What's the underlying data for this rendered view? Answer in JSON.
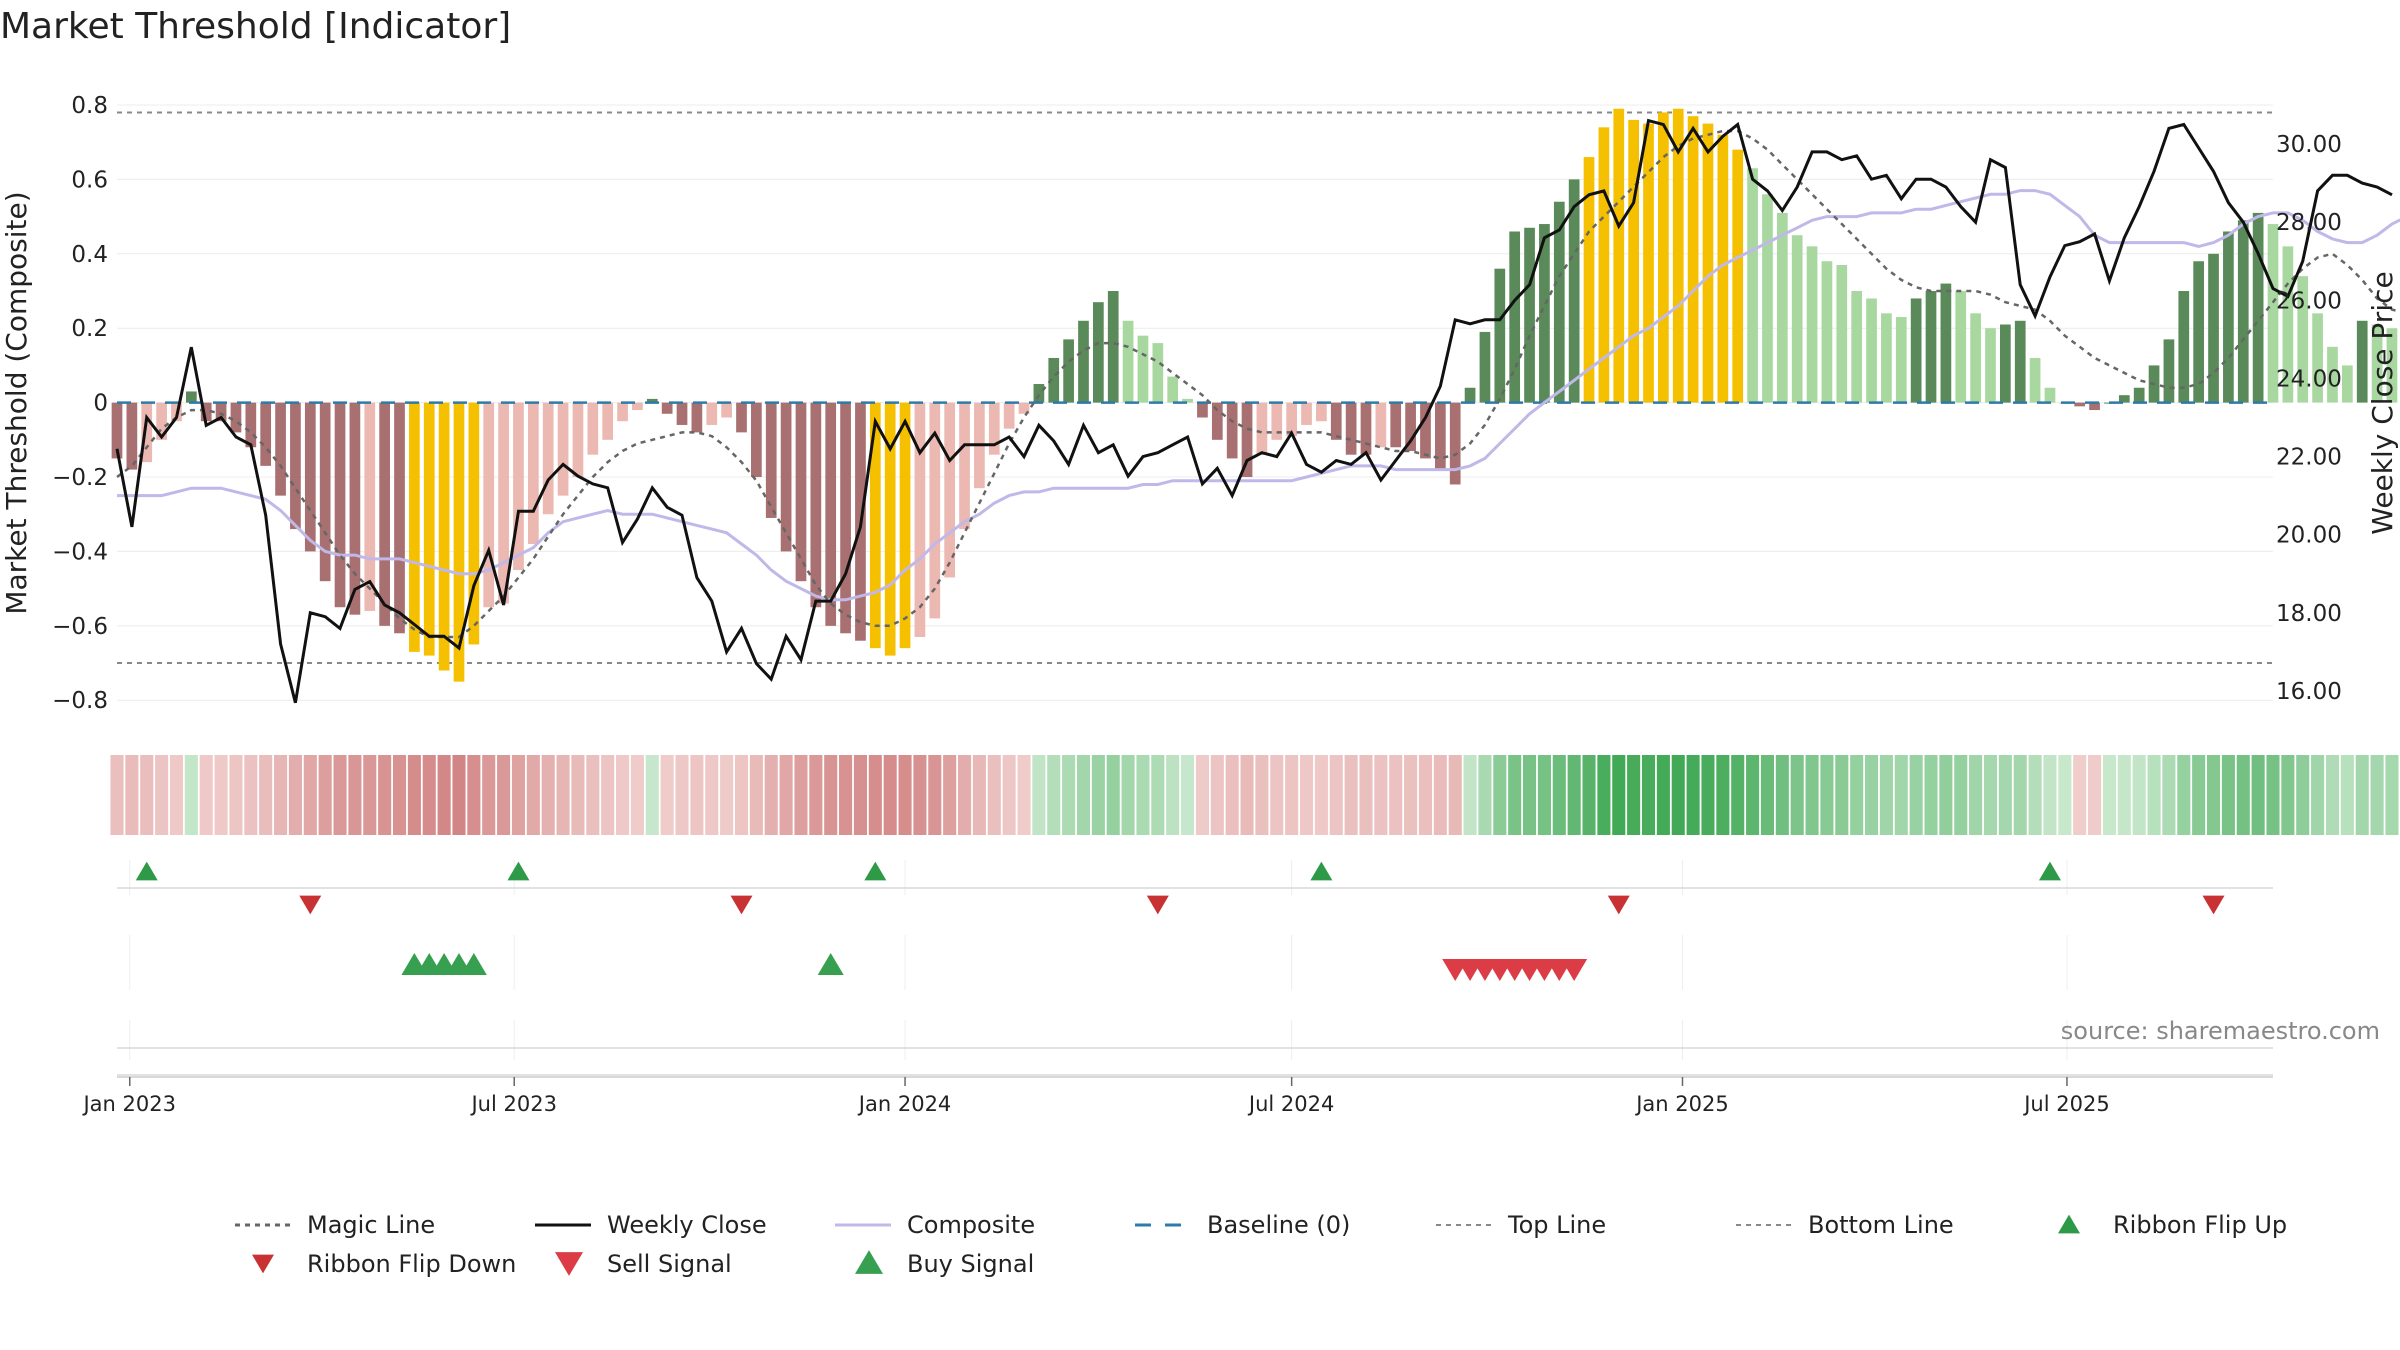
{
  "chart_data": {
    "type": "bar",
    "title": "Market Threshold [Indicator]",
    "ylabel_left": "Market Threshold (Composite)",
    "ylabel_right": "Weekly Close Price",
    "source": "source: sharemaestro.com",
    "x_start": "2022-12-26",
    "x_end": "2025-10-06",
    "ylim_left": [
      -0.88,
      0.8
    ],
    "ylim_right": [
      15.0,
      31.0
    ],
    "yticks_left": [
      0.8,
      0.6,
      0.4,
      0.2,
      0,
      -0.2,
      -0.4,
      -0.6,
      -0.8
    ],
    "yticks_left_labels": [
      "0.8",
      "0.6",
      "0.4",
      "0.2",
      "0",
      "−0.2",
      "−0.4",
      "−0.6",
      "−0.8"
    ],
    "yticks_right": [
      30,
      28,
      26,
      24,
      22,
      20,
      18,
      16
    ],
    "yticks_right_labels": [
      "30.00",
      "28.00",
      "26.00",
      "24.00",
      "22.00",
      "20.00",
      "18.00",
      "16.00"
    ],
    "xticks": [
      {
        "date": "2023-01-01",
        "label": "Jan 2023"
      },
      {
        "date": "2023-07-01",
        "label": "Jul 2023"
      },
      {
        "date": "2024-01-01",
        "label": "Jan 2024"
      },
      {
        "date": "2024-07-01",
        "label": "Jul 2024"
      },
      {
        "date": "2025-01-01",
        "label": "Jan 2025"
      },
      {
        "date": "2025-07-01",
        "label": "Jul 2025"
      }
    ],
    "top_line": 0.78,
    "bottom_line": -0.7,
    "baseline": 0,
    "composite_bars": [
      -0.15,
      -0.18,
      -0.16,
      -0.1,
      -0.05,
      0.03,
      -0.05,
      -0.05,
      -0.08,
      -0.12,
      -0.17,
      -0.25,
      -0.34,
      -0.4,
      -0.48,
      -0.55,
      -0.57,
      -0.56,
      -0.6,
      -0.62,
      -0.67,
      -0.68,
      -0.72,
      -0.75,
      -0.65,
      -0.55,
      -0.54,
      -0.45,
      -0.38,
      -0.3,
      -0.25,
      -0.2,
      -0.14,
      -0.1,
      -0.05,
      -0.02,
      0.01,
      -0.03,
      -0.06,
      -0.08,
      -0.06,
      -0.04,
      -0.08,
      -0.2,
      -0.31,
      -0.4,
      -0.48,
      -0.55,
      -0.6,
      -0.62,
      -0.64,
      -0.66,
      -0.68,
      -0.66,
      -0.63,
      -0.58,
      -0.47,
      -0.34,
      -0.23,
      -0.14,
      -0.07,
      -0.03,
      0.05,
      0.12,
      0.17,
      0.22,
      0.27,
      0.3,
      0.22,
      0.18,
      0.16,
      0.07,
      0.01,
      -0.04,
      -0.1,
      -0.15,
      -0.2,
      -0.14,
      -0.1,
      -0.09,
      -0.06,
      -0.05,
      -0.1,
      -0.14,
      -0.14,
      -0.12,
      -0.12,
      -0.13,
      -0.15,
      -0.18,
      -0.22,
      0.04,
      0.19,
      0.36,
      0.46,
      0.47,
      0.48,
      0.54,
      0.6,
      0.66,
      0.74,
      0.79,
      0.76,
      0.75,
      0.78,
      0.79,
      0.77,
      0.75,
      0.72,
      0.68,
      0.63,
      0.56,
      0.51,
      0.45,
      0.42,
      0.38,
      0.37,
      0.3,
      0.28,
      0.24,
      0.23,
      0.28,
      0.3,
      0.32,
      0.3,
      0.24,
      0.2,
      0.21,
      0.22,
      0.12,
      0.04,
      0.0,
      -0.01,
      -0.02,
      0.0,
      0.02,
      0.04,
      0.1,
      0.17,
      0.3,
      0.38,
      0.4,
      0.46,
      0.49,
      0.51,
      0.48,
      0.42,
      0.34,
      0.24,
      0.15,
      0.1,
      0.22,
      0.21,
      0.2,
      0.18,
      0.17
    ],
    "weekly_close": [
      22.2,
      20.2,
      23.0,
      22.5,
      23.0,
      24.8,
      22.8,
      23.0,
      22.5,
      22.3,
      20.5,
      17.2,
      15.7,
      18.0,
      17.9,
      17.6,
      18.6,
      18.8,
      18.2,
      18.0,
      17.7,
      17.4,
      17.4,
      17.1,
      18.7,
      19.6,
      18.2,
      20.6,
      20.6,
      21.4,
      21.8,
      21.5,
      21.3,
      21.2,
      19.8,
      20.4,
      21.2,
      20.7,
      20.5,
      18.9,
      18.3,
      17.0,
      17.6,
      16.7,
      16.3,
      17.4,
      16.8,
      18.3,
      18.3,
      19.0,
      20.2,
      22.9,
      22.2,
      22.9,
      22.1,
      22.6,
      21.9,
      22.3,
      22.3,
      22.3,
      22.5,
      22.0,
      22.8,
      22.4,
      21.8,
      22.8,
      22.1,
      22.3,
      21.5,
      22.0,
      22.1,
      22.3,
      22.5,
      21.3,
      21.7,
      21.0,
      21.9,
      22.1,
      22.0,
      22.6,
      21.8,
      21.6,
      21.9,
      21.8,
      22.1,
      21.4,
      21.9,
      22.4,
      23.0,
      23.8,
      25.5,
      25.4,
      25.5,
      25.5,
      26.0,
      26.4,
      27.6,
      27.8,
      28.4,
      28.7,
      28.8,
      27.9,
      28.5,
      30.6,
      30.5,
      29.8,
      30.4,
      29.8,
      30.2,
      30.5,
      29.1,
      28.8,
      28.3,
      28.9,
      29.8,
      29.8,
      29.6,
      29.7,
      29.1,
      29.2,
      28.6,
      29.1,
      29.1,
      28.9,
      28.4,
      28.0,
      29.6,
      29.4,
      26.4,
      25.6,
      26.6,
      27.4,
      27.5,
      27.7,
      26.5,
      27.6,
      28.4,
      29.3,
      30.4,
      30.5,
      29.9,
      29.3,
      28.5,
      28.0,
      27.2,
      26.3,
      26.1,
      27.0,
      28.8,
      29.2,
      29.2,
      29.0,
      28.9,
      28.7
    ],
    "composite_line": [
      -0.25,
      -0.25,
      -0.25,
      -0.25,
      -0.24,
      -0.23,
      -0.23,
      -0.23,
      -0.24,
      -0.25,
      -0.26,
      -0.29,
      -0.33,
      -0.37,
      -0.4,
      -0.41,
      -0.41,
      -0.42,
      -0.42,
      -0.42,
      -0.43,
      -0.44,
      -0.45,
      -0.46,
      -0.46,
      -0.45,
      -0.43,
      -0.41,
      -0.39,
      -0.35,
      -0.32,
      -0.31,
      -0.3,
      -0.29,
      -0.3,
      -0.3,
      -0.3,
      -0.31,
      -0.32,
      -0.33,
      -0.34,
      -0.35,
      -0.38,
      -0.41,
      -0.45,
      -0.48,
      -0.5,
      -0.52,
      -0.53,
      -0.53,
      -0.52,
      -0.51,
      -0.49,
      -0.45,
      -0.42,
      -0.38,
      -0.35,
      -0.32,
      -0.3,
      -0.27,
      -0.25,
      -0.24,
      -0.24,
      -0.23,
      -0.23,
      -0.23,
      -0.23,
      -0.23,
      -0.23,
      -0.22,
      -0.22,
      -0.21,
      -0.21,
      -0.21,
      -0.21,
      -0.21,
      -0.21,
      -0.21,
      -0.21,
      -0.21,
      -0.2,
      -0.19,
      -0.18,
      -0.17,
      -0.17,
      -0.17,
      -0.18,
      -0.18,
      -0.18,
      -0.18,
      -0.18,
      -0.17,
      -0.15,
      -0.11,
      -0.07,
      -0.03,
      0.0,
      0.03,
      0.06,
      0.09,
      0.12,
      0.15,
      0.18,
      0.2,
      0.23,
      0.26,
      0.3,
      0.34,
      0.37,
      0.39,
      0.41,
      0.43,
      0.45,
      0.47,
      0.49,
      0.5,
      0.5,
      0.5,
      0.51,
      0.51,
      0.51,
      0.52,
      0.52,
      0.53,
      0.54,
      0.55,
      0.56,
      0.56,
      0.57,
      0.57,
      0.56,
      0.53,
      0.5,
      0.45,
      0.43,
      0.43,
      0.43,
      0.43,
      0.43,
      0.43,
      0.42,
      0.43,
      0.45,
      0.48,
      0.5,
      0.51,
      0.51,
      0.49,
      0.46,
      0.44,
      0.43,
      0.43,
      0.45,
      0.48,
      0.5,
      0.52,
      0.53,
      0.53
    ],
    "magic_line": [
      -0.2,
      -0.17,
      -0.12,
      -0.07,
      -0.04,
      -0.02,
      -0.02,
      -0.03,
      -0.05,
      -0.08,
      -0.12,
      -0.17,
      -0.23,
      -0.29,
      -0.35,
      -0.41,
      -0.46,
      -0.5,
      -0.54,
      -0.58,
      -0.61,
      -0.63,
      -0.63,
      -0.63,
      -0.6,
      -0.56,
      -0.52,
      -0.47,
      -0.42,
      -0.36,
      -0.3,
      -0.25,
      -0.2,
      -0.16,
      -0.13,
      -0.11,
      -0.1,
      -0.09,
      -0.08,
      -0.08,
      -0.09,
      -0.12,
      -0.16,
      -0.21,
      -0.28,
      -0.35,
      -0.42,
      -0.49,
      -0.54,
      -0.57,
      -0.59,
      -0.6,
      -0.6,
      -0.58,
      -0.55,
      -0.5,
      -0.43,
      -0.35,
      -0.27,
      -0.19,
      -0.11,
      -0.04,
      0.02,
      0.07,
      0.11,
      0.14,
      0.16,
      0.16,
      0.15,
      0.13,
      0.11,
      0.08,
      0.05,
      0.02,
      -0.02,
      -0.05,
      -0.07,
      -0.08,
      -0.08,
      -0.08,
      -0.08,
      -0.08,
      -0.09,
      -0.1,
      -0.11,
      -0.12,
      -0.13,
      -0.13,
      -0.14,
      -0.15,
      -0.14,
      -0.11,
      -0.06,
      0.01,
      0.09,
      0.18,
      0.26,
      0.34,
      0.4,
      0.46,
      0.5,
      0.54,
      0.58,
      0.62,
      0.66,
      0.69,
      0.71,
      0.72,
      0.73,
      0.73,
      0.71,
      0.68,
      0.64,
      0.6,
      0.56,
      0.52,
      0.48,
      0.44,
      0.4,
      0.36,
      0.33,
      0.31,
      0.3,
      0.3,
      0.3,
      0.3,
      0.29,
      0.27,
      0.26,
      0.25,
      0.22,
      0.18,
      0.15,
      0.12,
      0.1,
      0.08,
      0.06,
      0.05,
      0.04,
      0.04,
      0.05,
      0.08,
      0.12,
      0.17,
      0.22,
      0.27,
      0.32,
      0.36,
      0.39,
      0.4,
      0.37,
      0.33,
      0.28,
      0.25,
      0.24,
      0.23,
      0.22,
      0.21
    ],
    "ribbon_flip_up": [
      "2023-01-09",
      "2023-07-03",
      "2023-12-18",
      "2024-07-15",
      "2025-06-23"
    ],
    "ribbon_flip_down": [
      "2023-03-27",
      "2023-10-16",
      "2024-04-29",
      "2024-12-02",
      "2025-09-08"
    ],
    "buy_signal": [
      "2023-05-15",
      "2023-05-22",
      "2023-05-29",
      "2023-06-05",
      "2023-06-12",
      "2023-11-27"
    ],
    "sell_signal": [
      "2024-09-16",
      "2024-09-23",
      "2024-09-30",
      "2024-10-07",
      "2024-10-14",
      "2024-10-21",
      "2024-10-28",
      "2024-11-04",
      "2024-11-11"
    ],
    "legend": [
      {
        "key": "magic",
        "label": "Magic Line"
      },
      {
        "key": "close",
        "label": "Weekly Close"
      },
      {
        "key": "composite",
        "label": "Composite"
      },
      {
        "key": "baseline",
        "label": "Baseline (0)"
      },
      {
        "key": "topline",
        "label": "Top Line"
      },
      {
        "key": "bottomline",
        "label": "Bottom Line"
      },
      {
        "key": "flipup",
        "label": "Ribbon Flip Up"
      },
      {
        "key": "flipdown",
        "label": "Ribbon Flip Down"
      },
      {
        "key": "sell",
        "label": "Sell Signal"
      },
      {
        "key": "buy",
        "label": "Buy Signal"
      }
    ],
    "colors": {
      "gold": "#f5c000",
      "dark_green": "#5a8a5a",
      "light_green": "#a8d8a0",
      "dark_red": "#a87070",
      "light_red": "#ecb8b2",
      "weekly_close": "#111111",
      "composite": "#c0b8e8",
      "magic": "#666666",
      "baseline": "#2e7aa8",
      "threshold": "#888888",
      "flip_up": "#2e9a48",
      "flip_down": "#c83232",
      "sell": "#dc3c46",
      "buy": "#36a050"
    }
  }
}
